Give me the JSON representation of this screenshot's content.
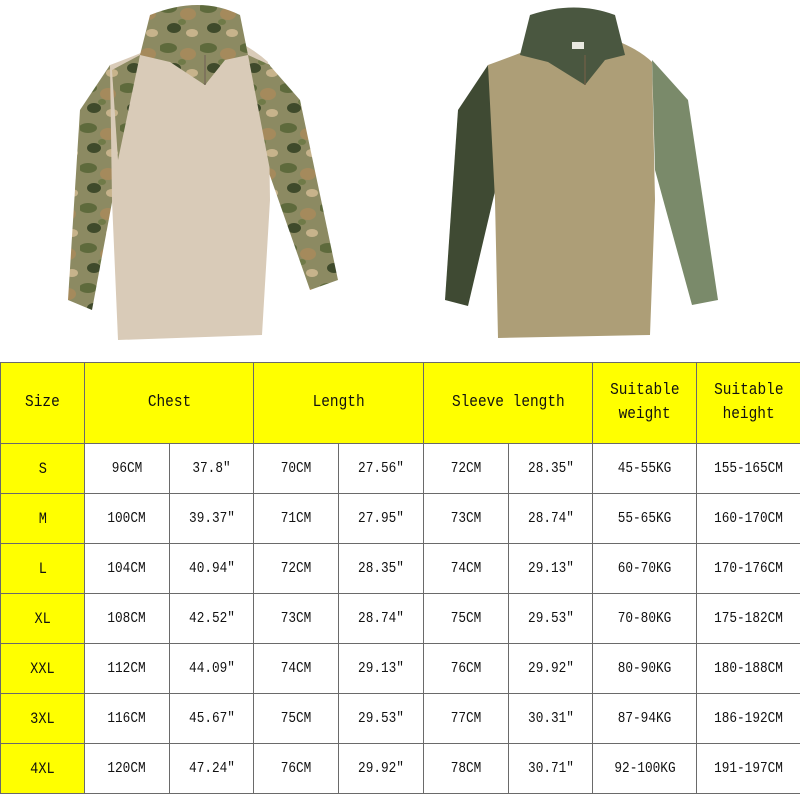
{
  "product_images": [
    {
      "name": "camo-shirt",
      "colors": {
        "body": "#d9cbb8",
        "sleeve": "#8c8a62",
        "camo_spots": [
          "#5e6a3c",
          "#a58a5c",
          "#3f4a2b",
          "#c7b38b"
        ]
      }
    },
    {
      "name": "khaki-green-shirt",
      "colors": {
        "body": "#ad9e77",
        "sleeve": "#56644a",
        "collar": "#4a5740"
      }
    }
  ],
  "table": {
    "header_color": "#ffff00",
    "headers": {
      "size": "Size",
      "chest": "Chest",
      "length": "Length",
      "sleeve": "Sleeve length",
      "weight_line1": "Suitable",
      "weight_line2": "weight",
      "height_line1": "Suitable",
      "height_line2": "height"
    },
    "rows": [
      [
        "S",
        "96CM",
        "37.8″",
        "70CM",
        "27.56″",
        "72CM",
        "28.35″",
        "45-55KG",
        "155-165CM"
      ],
      [
        "M",
        "100CM",
        "39.37″",
        "71CM",
        "27.95″",
        "73CM",
        "28.74″",
        "55-65KG",
        "160-170CM"
      ],
      [
        "L",
        "104CM",
        "40.94″",
        "72CM",
        "28.35″",
        "74CM",
        "29.13″",
        "60-70KG",
        "170-176CM"
      ],
      [
        "XL",
        "108CM",
        "42.52″",
        "73CM",
        "28.74″",
        "75CM",
        "29.53″",
        "70-80KG",
        "175-182CM"
      ],
      [
        "XXL",
        "112CM",
        "44.09″",
        "74CM",
        "29.13″",
        "76CM",
        "29.92″",
        "80-90KG",
        "180-188CM"
      ],
      [
        "3XL",
        "116CM",
        "45.67″",
        "75CM",
        "29.53″",
        "77CM",
        "30.31″",
        "87-94KG",
        "186-192CM"
      ],
      [
        "4XL",
        "120CM",
        "47.24″",
        "76CM",
        "29.92″",
        "78CM",
        "30.71″",
        "92-100KG",
        "191-197CM"
      ]
    ]
  }
}
